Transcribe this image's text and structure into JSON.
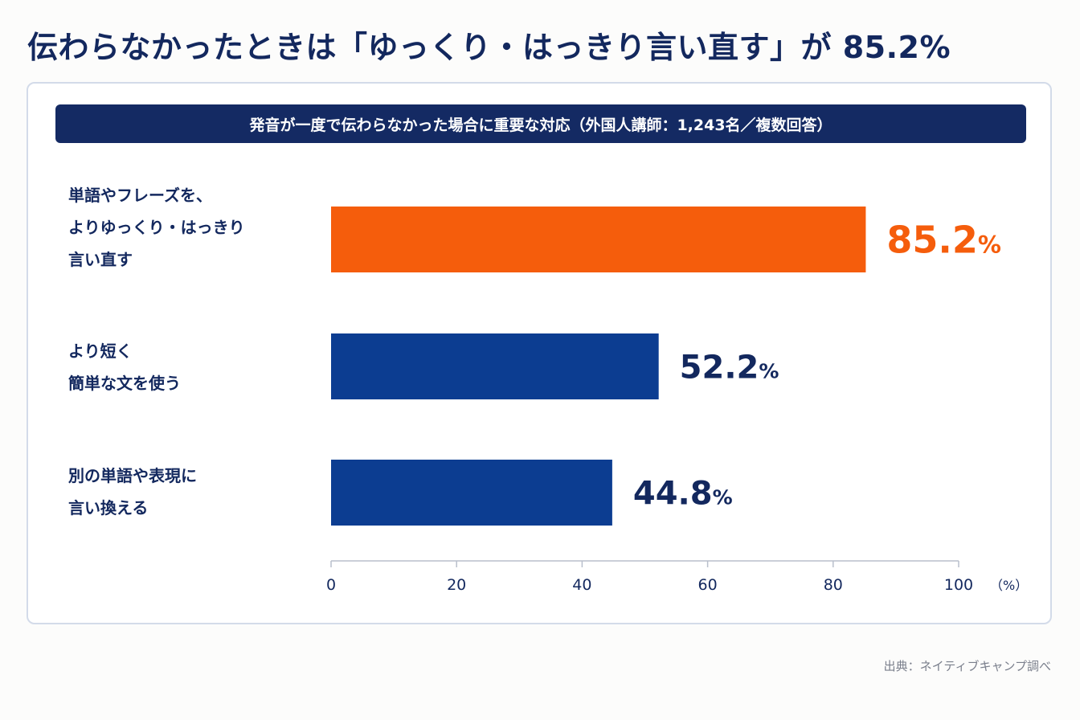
{
  "headline": "伝わらなかったときは「ゆっくり・はっきり言い直す」が 85.2%",
  "chart_data": {
    "type": "bar",
    "orientation": "horizontal",
    "title": "発音が一度で伝わらなかった場合に重要な対応（外国人講師：1,243名／複数回答）",
    "categories": [
      "単語やフレーズを、\nよりゆっくり・はっきり\n言い直す",
      "より短く\n簡単な文を使う",
      "別の単語や表現に\n言い換える"
    ],
    "values": [
      85.2,
      52.2,
      44.8
    ],
    "value_labels": [
      "85.2",
      "52.2",
      "44.8"
    ],
    "value_unit": "%",
    "bar_colors": [
      "#f55d0c",
      "#0c3d91",
      "#0c3d91"
    ],
    "value_label_colors": [
      "#f55d0c",
      "#13285e",
      "#13285e"
    ],
    "xlim": [
      0,
      100
    ],
    "xticks": [
      "0",
      "20",
      "40",
      "60",
      "80",
      "100"
    ],
    "xunit": "（%）",
    "grid": false
  },
  "source": "出典：ネイティブキャンプ調べ"
}
